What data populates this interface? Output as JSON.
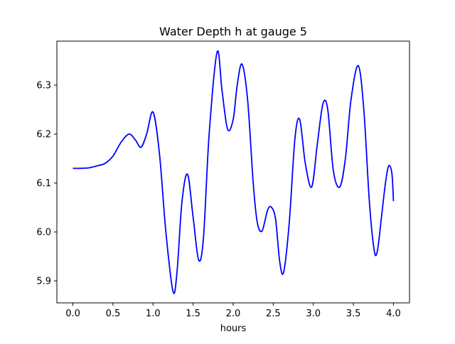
{
  "chart_data": {
    "type": "line",
    "title": "Water Depth h at gauge 5",
    "xlabel": "hours",
    "ylabel": "",
    "xlim": [
      -0.2,
      4.2
    ],
    "ylim": [
      5.855,
      6.39
    ],
    "xticks": [
      0.0,
      0.5,
      1.0,
      1.5,
      2.0,
      2.5,
      3.0,
      3.5,
      4.0
    ],
    "xtick_labels": [
      "0.0",
      "0.5",
      "1.0",
      "1.5",
      "2.0",
      "2.5",
      "3.0",
      "3.5",
      "4.0"
    ],
    "yticks": [
      5.9,
      6.0,
      6.1,
      6.2,
      6.3
    ],
    "ytick_labels": [
      "5.9",
      "6.0",
      "6.1",
      "6.2",
      "6.3"
    ],
    "grid": false,
    "series": [
      {
        "color": "#0000ff",
        "x": [
          0.0,
          0.1,
          0.2,
          0.3,
          0.4,
          0.5,
          0.6,
          0.7,
          0.78,
          0.85,
          0.92,
          1.0,
          1.08,
          1.16,
          1.25,
          1.3,
          1.36,
          1.43,
          1.5,
          1.57,
          1.63,
          1.7,
          1.8,
          1.86,
          1.93,
          2.0,
          2.05,
          2.11,
          2.18,
          2.25,
          2.3,
          2.36,
          2.43,
          2.48,
          2.53,
          2.58,
          2.63,
          2.7,
          2.77,
          2.83,
          2.9,
          2.98,
          3.05,
          3.12,
          3.18,
          3.25,
          3.33,
          3.4,
          3.47,
          3.56,
          3.63,
          3.7,
          3.76,
          3.8,
          3.85,
          3.9,
          3.94,
          3.98,
          4.0
        ],
        "y": [
          6.13,
          6.13,
          6.131,
          6.135,
          6.14,
          6.155,
          6.183,
          6.2,
          6.188,
          6.173,
          6.2,
          6.245,
          6.16,
          6.0,
          5.878,
          5.92,
          6.06,
          6.118,
          6.03,
          5.942,
          5.99,
          6.2,
          6.368,
          6.29,
          6.21,
          6.23,
          6.3,
          6.343,
          6.27,
          6.1,
          6.02,
          6.002,
          6.045,
          6.05,
          6.025,
          5.94,
          5.918,
          6.02,
          6.19,
          6.23,
          6.14,
          6.092,
          6.18,
          6.262,
          6.25,
          6.125,
          6.092,
          6.15,
          6.27,
          6.34,
          6.25,
          6.06,
          5.962,
          5.962,
          6.03,
          6.1,
          6.135,
          6.12,
          6.063
        ]
      }
    ]
  }
}
